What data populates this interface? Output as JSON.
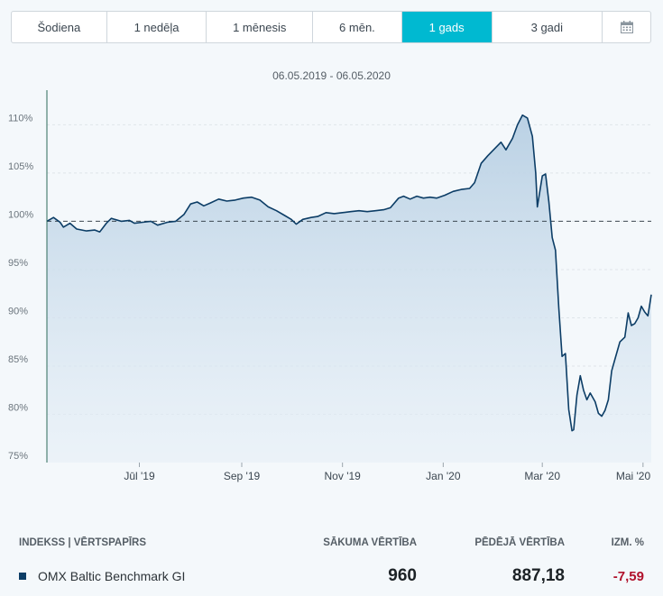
{
  "tabs": [
    {
      "label": "Šodiena"
    },
    {
      "label": "1 nedēļa"
    },
    {
      "label": "1 mēnesis"
    },
    {
      "label": "6 mēn."
    },
    {
      "label": "1 gads",
      "active": true
    },
    {
      "label": "3 gadi"
    },
    {
      "label": "",
      "icon": "calendar-icon"
    }
  ],
  "date_range": "06.05.2019 - 06.05.2020",
  "colors": {
    "accent": "#00b9d1",
    "line": "#0c3d66",
    "negative": "#b0112b"
  },
  "table": {
    "headers": {
      "index": "INDEKSS | VĒRTSPAPĪRS",
      "start": "SĀKUMA VĒRTĪBA",
      "last": "PĒDĒJĀ VĒRTĪBA",
      "change": "IZM. %"
    },
    "rows": [
      {
        "name": "OMX Baltic Benchmark GI",
        "start": "960",
        "last": "887,18",
        "change": "-7,59"
      }
    ]
  },
  "chart_data": {
    "type": "area",
    "ylim": [
      75,
      112
    ],
    "yticks": [
      75,
      80,
      85,
      90,
      95,
      100,
      105,
      110
    ],
    "ytick_labels": [
      "75%",
      "80%",
      "85%",
      "90%",
      "95%",
      "100%",
      "105%",
      "110%"
    ],
    "baseline": 100,
    "x_domain": [
      "2019-05-06",
      "2020-05-06"
    ],
    "xticks": [
      {
        "date": "2019-07-01",
        "label": "Jūl '19"
      },
      {
        "date": "2019-09-01",
        "label": "Sep '19"
      },
      {
        "date": "2019-11-01",
        "label": "Nov '19"
      },
      {
        "date": "2020-01-01",
        "label": "Jan '20"
      },
      {
        "date": "2020-03-01",
        "label": "Mar '20"
      },
      {
        "date": "2020-05-01",
        "label": "Mai '20"
      }
    ],
    "points": [
      [
        "2019-05-06",
        100.0
      ],
      [
        "2019-05-10",
        100.4
      ],
      [
        "2019-05-14",
        99.9
      ],
      [
        "2019-05-16",
        99.4
      ],
      [
        "2019-05-20",
        99.8
      ],
      [
        "2019-05-24",
        99.2
      ],
      [
        "2019-05-30",
        99.0
      ],
      [
        "2019-06-04",
        99.1
      ],
      [
        "2019-06-07",
        98.9
      ],
      [
        "2019-06-11",
        99.8
      ],
      [
        "2019-06-14",
        100.3
      ],
      [
        "2019-06-20",
        100.0
      ],
      [
        "2019-06-25",
        100.1
      ],
      [
        "2019-06-28",
        99.8
      ],
      [
        "2019-07-03",
        99.9
      ],
      [
        "2019-07-08",
        100.0
      ],
      [
        "2019-07-12",
        99.6
      ],
      [
        "2019-07-18",
        99.9
      ],
      [
        "2019-07-23",
        100.0
      ],
      [
        "2019-07-28",
        100.7
      ],
      [
        "2019-08-01",
        101.8
      ],
      [
        "2019-08-05",
        102.0
      ],
      [
        "2019-08-09",
        101.6
      ],
      [
        "2019-08-13",
        101.9
      ],
      [
        "2019-08-18",
        102.3
      ],
      [
        "2019-08-23",
        102.1
      ],
      [
        "2019-08-28",
        102.2
      ],
      [
        "2019-09-02",
        102.4
      ],
      [
        "2019-09-07",
        102.5
      ],
      [
        "2019-09-12",
        102.2
      ],
      [
        "2019-09-17",
        101.5
      ],
      [
        "2019-09-22",
        101.1
      ],
      [
        "2019-09-27",
        100.6
      ],
      [
        "2019-10-01",
        100.2
      ],
      [
        "2019-10-04",
        99.7
      ],
      [
        "2019-10-08",
        100.2
      ],
      [
        "2019-10-13",
        100.4
      ],
      [
        "2019-10-17",
        100.5
      ],
      [
        "2019-10-22",
        100.9
      ],
      [
        "2019-10-27",
        100.8
      ],
      [
        "2019-11-01",
        100.9
      ],
      [
        "2019-11-06",
        101.0
      ],
      [
        "2019-11-11",
        101.1
      ],
      [
        "2019-11-16",
        101.0
      ],
      [
        "2019-11-21",
        101.1
      ],
      [
        "2019-11-26",
        101.2
      ],
      [
        "2019-11-30",
        101.4
      ],
      [
        "2019-12-05",
        102.4
      ],
      [
        "2019-12-08",
        102.6
      ],
      [
        "2019-12-12",
        102.3
      ],
      [
        "2019-12-16",
        102.6
      ],
      [
        "2019-12-20",
        102.4
      ],
      [
        "2019-12-24",
        102.5
      ],
      [
        "2019-12-28",
        102.4
      ],
      [
        "2020-01-02",
        102.7
      ],
      [
        "2020-01-07",
        103.1
      ],
      [
        "2020-01-12",
        103.3
      ],
      [
        "2020-01-17",
        103.4
      ],
      [
        "2020-01-20",
        104.0
      ],
      [
        "2020-01-24",
        106.0
      ],
      [
        "2020-01-28",
        106.8
      ],
      [
        "2020-02-01",
        107.5
      ],
      [
        "2020-02-05",
        108.2
      ],
      [
        "2020-02-08",
        107.4
      ],
      [
        "2020-02-12",
        108.6
      ],
      [
        "2020-02-15",
        110.0
      ],
      [
        "2020-02-18",
        111.0
      ],
      [
        "2020-02-21",
        110.7
      ],
      [
        "2020-02-24",
        108.8
      ],
      [
        "2020-02-26",
        105.0
      ],
      [
        "2020-02-27",
        101.5
      ],
      [
        "2020-03-01",
        104.7
      ],
      [
        "2020-03-03",
        104.9
      ],
      [
        "2020-03-05",
        102.0
      ],
      [
        "2020-03-07",
        98.3
      ],
      [
        "2020-03-09",
        97.0
      ],
      [
        "2020-03-11",
        91.0
      ],
      [
        "2020-03-13",
        86.0
      ],
      [
        "2020-03-15",
        86.3
      ],
      [
        "2020-03-17",
        80.5
      ],
      [
        "2020-03-19",
        78.3
      ],
      [
        "2020-03-20",
        78.4
      ],
      [
        "2020-03-22",
        82.0
      ],
      [
        "2020-03-24",
        84.0
      ],
      [
        "2020-03-26",
        82.5
      ],
      [
        "2020-03-28",
        81.5
      ],
      [
        "2020-03-30",
        82.2
      ],
      [
        "2020-04-02",
        81.3
      ],
      [
        "2020-04-04",
        80.1
      ],
      [
        "2020-04-06",
        79.8
      ],
      [
        "2020-04-08",
        80.4
      ],
      [
        "2020-04-10",
        81.5
      ],
      [
        "2020-04-12",
        84.5
      ],
      [
        "2020-04-14",
        85.7
      ],
      [
        "2020-04-17",
        87.5
      ],
      [
        "2020-04-20",
        88.0
      ],
      [
        "2020-04-22",
        90.5
      ],
      [
        "2020-04-24",
        89.2
      ],
      [
        "2020-04-26",
        89.4
      ],
      [
        "2020-04-28",
        90.0
      ],
      [
        "2020-04-30",
        91.2
      ],
      [
        "2020-05-02",
        90.6
      ],
      [
        "2020-05-04",
        90.2
      ],
      [
        "2020-05-06",
        92.4
      ]
    ]
  }
}
